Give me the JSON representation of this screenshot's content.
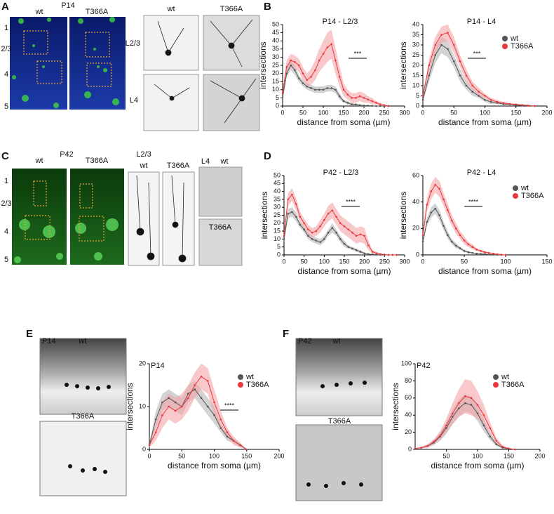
{
  "figure": {
    "panel_letters": [
      "A",
      "B",
      "C",
      "D",
      "E",
      "F"
    ],
    "panel_a": {
      "age": "P14",
      "genotypes": [
        "wt",
        "T366A"
      ],
      "layers": [
        "1",
        "2/3",
        "4",
        "5"
      ],
      "zoom_genotypes": [
        "wt",
        "T366A"
      ],
      "zoom_layers": [
        "L2/3",
        "L4"
      ]
    },
    "panel_c": {
      "age": "P42",
      "genotypes": [
        "wt",
        "T366A"
      ],
      "layers": [
        "1",
        "2/3",
        "4",
        "5"
      ],
      "l23_title": "L2/3",
      "l23_genotypes": [
        "wt",
        "T366A"
      ],
      "l4_title": "L4",
      "l4_genotypes": [
        "wt",
        "T366A"
      ]
    },
    "panel_e": {
      "age": "P14",
      "genotypes": [
        "wt",
        "T366A"
      ]
    },
    "panel_f": {
      "age": "P42",
      "genotypes": [
        "wt",
        "T366A"
      ]
    }
  },
  "chart_data": [
    {
      "type": "line",
      "title": "P14 - L2/3",
      "x_label": "distance from soma (µm)",
      "y_label": "intersections",
      "annotation": "***",
      "legend": false,
      "x": [
        0,
        10,
        20,
        30,
        40,
        50,
        60,
        70,
        80,
        90,
        100,
        110,
        120,
        130,
        140,
        150,
        160,
        170,
        180,
        190,
        200,
        210,
        220,
        230,
        240,
        250,
        260
      ],
      "xlim": [
        0,
        300
      ],
      "xticks": [
        0,
        50,
        100,
        150,
        200,
        250,
        300
      ],
      "ylim": [
        0,
        50
      ],
      "yticks": [
        0,
        5,
        10,
        15,
        20,
        25,
        30,
        35,
        40,
        45,
        50
      ],
      "series": [
        {
          "name": "wt",
          "color": "#555555",
          "values": [
            5,
            20,
            25,
            22,
            17,
            14,
            12,
            11,
            10,
            10,
            10,
            11,
            11,
            10,
            6,
            3,
            2,
            1,
            1,
            0.5,
            0.3,
            0.2,
            0.1,
            0,
            0,
            0,
            0
          ],
          "errors": [
            1,
            2,
            3,
            3,
            2,
            2,
            2,
            2,
            2,
            2,
            2,
            2,
            2,
            2,
            2,
            1,
            1,
            1,
            0.5,
            0.5,
            0.3,
            0.2,
            0.1,
            0,
            0,
            0,
            0
          ]
        },
        {
          "name": "T366A",
          "color": "#e8393f",
          "values": [
            8,
            24,
            28,
            27,
            25,
            20,
            16,
            18,
            22,
            28,
            32,
            36,
            38,
            28,
            18,
            10,
            7,
            5,
            5,
            6,
            5,
            4,
            3,
            2,
            1,
            0.5,
            0
          ],
          "errors": [
            2,
            4,
            4,
            4,
            4,
            4,
            4,
            5,
            6,
            7,
            8,
            9,
            9,
            8,
            6,
            4,
            3,
            3,
            3,
            3,
            3,
            2,
            2,
            1,
            1,
            0.5,
            0
          ]
        }
      ]
    },
    {
      "type": "line",
      "title": "P14 - L4",
      "x_label": "distance from soma (µm)",
      "y_label": "intersections",
      "annotation": "***",
      "legend": true,
      "x": [
        0,
        10,
        20,
        30,
        40,
        50,
        60,
        70,
        80,
        90,
        100,
        110,
        120,
        130,
        140,
        150,
        160,
        170,
        180
      ],
      "xlim": [
        0,
        200
      ],
      "xticks": [
        0,
        50,
        100,
        150,
        200
      ],
      "ylim": [
        0,
        40
      ],
      "yticks": [
        0,
        5,
        10,
        15,
        20,
        25,
        30,
        35,
        40
      ],
      "series": [
        {
          "name": "wt",
          "color": "#555555",
          "values": [
            3,
            15,
            25,
            30,
            28,
            22,
            15,
            10,
            7,
            5,
            3,
            2,
            1.5,
            1,
            0.8,
            0.5,
            0.3,
            0.2,
            0
          ],
          "errors": [
            1,
            3,
            4,
            4,
            4,
            3,
            3,
            2,
            2,
            1,
            1,
            1,
            0.5,
            0.5,
            0.3,
            0.3,
            0.2,
            0.1,
            0
          ]
        },
        {
          "name": "T366A",
          "color": "#e8393f",
          "values": [
            5,
            20,
            30,
            35,
            36,
            30,
            22,
            15,
            10,
            7,
            5,
            3,
            2,
            1.5,
            1,
            0.8,
            0.5,
            0.3,
            0
          ],
          "errors": [
            1,
            3,
            4,
            4,
            4,
            4,
            3,
            3,
            2,
            2,
            1,
            1,
            1,
            0.5,
            0.5,
            0.3,
            0.2,
            0.1,
            0
          ]
        }
      ]
    },
    {
      "type": "line",
      "title": "P42 - L2/3",
      "x_label": "distance from soma (µm)",
      "y_label": "intersections",
      "annotation": "****",
      "legend": false,
      "x": [
        0,
        10,
        20,
        30,
        40,
        50,
        60,
        70,
        80,
        90,
        100,
        110,
        120,
        130,
        140,
        150,
        160,
        170,
        180,
        190,
        200,
        210,
        220,
        230,
        240,
        250,
        260,
        270,
        280
      ],
      "xlim": [
        0,
        300
      ],
      "xticks": [
        0,
        50,
        100,
        150,
        200,
        250,
        300
      ],
      "ylim": [
        0,
        50
      ],
      "yticks": [
        0,
        5,
        10,
        15,
        20,
        25,
        30,
        35,
        40,
        45,
        50
      ],
      "series": [
        {
          "name": "wt",
          "color": "#555555",
          "values": [
            10,
            26,
            27,
            24,
            19,
            16,
            12,
            10,
            9,
            8,
            10,
            14,
            17,
            14,
            10,
            7,
            5,
            4,
            3,
            2,
            1,
            0.5,
            0.3,
            0.2,
            0,
            0,
            0,
            0,
            0
          ],
          "errors": [
            2,
            3,
            3,
            3,
            2,
            2,
            2,
            2,
            2,
            2,
            2,
            2,
            3,
            2,
            2,
            2,
            1,
            1,
            1,
            1,
            0.5,
            0.3,
            0.2,
            0.1,
            0,
            0,
            0,
            0,
            0
          ]
        },
        {
          "name": "T366A",
          "color": "#e8393f",
          "values": [
            12,
            35,
            38,
            32,
            24,
            20,
            16,
            14,
            15,
            18,
            22,
            26,
            28,
            24,
            20,
            18,
            16,
            14,
            12,
            13,
            12,
            6,
            2,
            1,
            0.5,
            0.2,
            0,
            0,
            0
          ],
          "errors": [
            3,
            4,
            4,
            4,
            3,
            3,
            3,
            3,
            3,
            4,
            4,
            5,
            5,
            5,
            5,
            5,
            5,
            5,
            5,
            5,
            5,
            3,
            1,
            1,
            0.5,
            0.2,
            0,
            0,
            0
          ]
        }
      ]
    },
    {
      "type": "line",
      "title": "P42 - L4",
      "x_label": "distance from soma (µm)",
      "y_label": "intersections",
      "annotation": "****",
      "legend": true,
      "x": [
        0,
        5,
        10,
        15,
        20,
        25,
        30,
        35,
        40,
        45,
        50,
        55,
        60,
        65,
        70,
        75,
        80,
        85,
        90,
        95,
        100
      ],
      "xlim": [
        0,
        150
      ],
      "xticks": [
        0,
        50,
        100,
        150
      ],
      "ylim": [
        0,
        60
      ],
      "yticks": [
        0,
        20,
        40,
        60
      ],
      "series": [
        {
          "name": "wt",
          "color": "#555555",
          "values": [
            10,
            25,
            32,
            35,
            30,
            22,
            15,
            10,
            7,
            5,
            3,
            2,
            1.5,
            1,
            0.7,
            0.5,
            0.3,
            0.2,
            0.1,
            0,
            0
          ],
          "errors": [
            2,
            3,
            4,
            4,
            4,
            3,
            3,
            2,
            2,
            1,
            1,
            1,
            0.5,
            0.5,
            0.3,
            0.3,
            0.2,
            0.1,
            0.1,
            0,
            0
          ]
        },
        {
          "name": "T366A",
          "color": "#e8393f",
          "values": [
            15,
            38,
            48,
            53,
            50,
            42,
            34,
            26,
            20,
            15,
            11,
            8,
            6,
            4,
            3,
            2,
            1.5,
            1,
            0.5,
            0.2,
            0
          ],
          "errors": [
            3,
            5,
            6,
            6,
            6,
            5,
            5,
            4,
            4,
            3,
            3,
            2,
            2,
            1,
            1,
            1,
            0.5,
            0.5,
            0.3,
            0.2,
            0
          ]
        }
      ]
    },
    {
      "type": "line",
      "title": "P14",
      "x_label": "distance from soma (µm)",
      "y_label": "intersections",
      "annotation": "****",
      "legend": true,
      "x": [
        0,
        10,
        20,
        30,
        40,
        50,
        60,
        70,
        80,
        90,
        100,
        110,
        120,
        130,
        140,
        150
      ],
      "xlim": [
        0,
        200
      ],
      "xticks": [
        0,
        50,
        100,
        150,
        200
      ],
      "ylim": [
        0,
        20
      ],
      "yticks": [
        0,
        10,
        20
      ],
      "series": [
        {
          "name": "wt",
          "color": "#555555",
          "values": [
            1,
            7,
            11,
            12,
            11,
            10,
            13,
            14,
            12,
            10,
            8,
            5,
            3,
            2,
            1,
            0
          ],
          "errors": [
            0.5,
            2,
            2,
            2,
            2,
            2,
            2,
            2,
            2,
            2,
            2,
            1,
            1,
            0.5,
            0.5,
            0
          ]
        },
        {
          "name": "T366A",
          "color": "#e8393f",
          "values": [
            1,
            4,
            8,
            10,
            9,
            10,
            12,
            15,
            17,
            16,
            11,
            7,
            4,
            2,
            1,
            0
          ],
          "errors": [
            0.5,
            2,
            3,
            3,
            3,
            3,
            3,
            3,
            3,
            3,
            3,
            2,
            1,
            1,
            0.5,
            0
          ]
        }
      ]
    },
    {
      "type": "line",
      "title": "P42",
      "x_label": "distance from soma (µm)",
      "y_label": "intersections",
      "annotation": null,
      "legend": true,
      "x": [
        0,
        10,
        20,
        30,
        40,
        50,
        60,
        70,
        80,
        90,
        100,
        110,
        120,
        130,
        140,
        150,
        160
      ],
      "xlim": [
        0,
        200
      ],
      "xticks": [
        50,
        100,
        150,
        200
      ],
      "ylim": [
        0,
        100
      ],
      "yticks": [
        0,
        20,
        40,
        60,
        80,
        100
      ],
      "series": [
        {
          "name": "wt",
          "color": "#555555",
          "values": [
            1,
            2,
            4,
            8,
            15,
            25,
            38,
            48,
            54,
            52,
            42,
            28,
            15,
            6,
            2,
            1,
            0
          ],
          "errors": [
            0.5,
            1,
            2,
            3,
            5,
            7,
            9,
            10,
            10,
            10,
            9,
            7,
            4,
            2,
            1,
            0.5,
            0
          ]
        },
        {
          "name": "T366A",
          "color": "#e8393f",
          "values": [
            1,
            2,
            4,
            9,
            16,
            28,
            42,
            54,
            62,
            60,
            52,
            40,
            25,
            10,
            3,
            1,
            0
          ],
          "errors": [
            0.5,
            1,
            2,
            3,
            5,
            8,
            12,
            16,
            20,
            20,
            16,
            12,
            7,
            4,
            2,
            0.5,
            0
          ]
        }
      ]
    }
  ]
}
